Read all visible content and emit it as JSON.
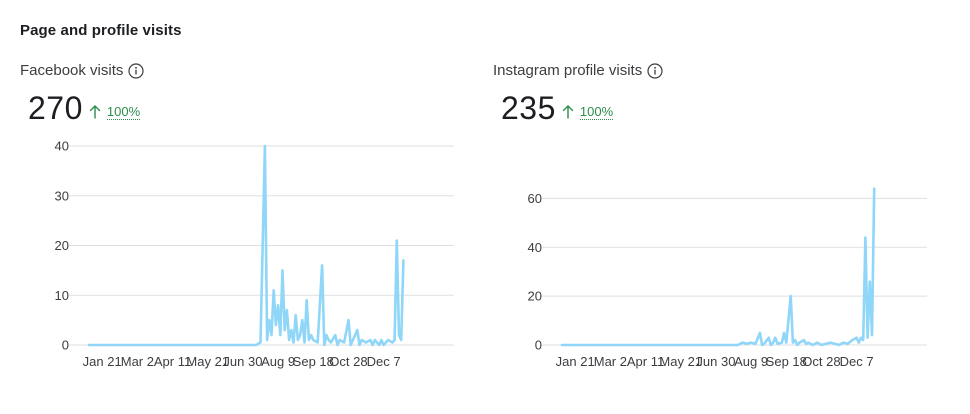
{
  "section_title": "Page and profile visits",
  "panels": [
    {
      "label": "Facebook visits",
      "value": "270",
      "change": "100%"
    },
    {
      "label": "Instagram profile visits",
      "value": "235",
      "change": "100%"
    }
  ],
  "icons": {
    "info": "info-icon",
    "trend": "arrow-up-icon"
  },
  "colors": {
    "series": "#8fd6f8",
    "increase": "#2c8c4a",
    "grid": "#dddfe2"
  },
  "chart_data": [
    {
      "type": "area",
      "ylim": [
        0,
        40
      ],
      "yticks": [
        0,
        10,
        20,
        30,
        40
      ],
      "xlim": [
        0,
        83
      ],
      "xticks": [
        {
          "x": 3,
          "label": "Jan 21"
        },
        {
          "x": 11,
          "label": "Mar 2"
        },
        {
          "x": 19,
          "label": "Apr 11"
        },
        {
          "x": 27,
          "label": "May 21"
        },
        {
          "x": 35,
          "label": "Jun 30"
        },
        {
          "x": 43,
          "label": "Aug 9"
        },
        {
          "x": 51,
          "label": "Sep 18"
        },
        {
          "x": 59,
          "label": "Oct 28"
        },
        {
          "x": 67,
          "label": "Dec 7"
        }
      ],
      "grid": true,
      "series": [
        {
          "points": [
            [
              0,
              0
            ],
            [
              38,
              0
            ],
            [
              39,
              0.5
            ],
            [
              40,
              40
            ],
            [
              40.5,
              1
            ],
            [
              41,
              5
            ],
            [
              41.5,
              2
            ],
            [
              42,
              11
            ],
            [
              42.5,
              4
            ],
            [
              43,
              8
            ],
            [
              43.5,
              2
            ],
            [
              44,
              15
            ],
            [
              44.5,
              3
            ],
            [
              45,
              7
            ],
            [
              45.5,
              1
            ],
            [
              46,
              3
            ],
            [
              46.5,
              0.5
            ],
            [
              47,
              6
            ],
            [
              47.5,
              1
            ],
            [
              48,
              2
            ],
            [
              48.5,
              5
            ],
            [
              49,
              0.5
            ],
            [
              49.5,
              9
            ],
            [
              50,
              1
            ],
            [
              50.5,
              2
            ],
            [
              51,
              1
            ],
            [
              52,
              0.5
            ],
            [
              53,
              16
            ],
            [
              53.5,
              0
            ],
            [
              54,
              2
            ],
            [
              54.5,
              1
            ],
            [
              55,
              0.5
            ],
            [
              56,
              2
            ],
            [
              56.5,
              0
            ],
            [
              57,
              1
            ],
            [
              58,
              0.5
            ],
            [
              59,
              5
            ],
            [
              59.5,
              0
            ],
            [
              60,
              1
            ],
            [
              61,
              3
            ],
            [
              61.5,
              0
            ],
            [
              62,
              1
            ],
            [
              63,
              0.5
            ],
            [
              64,
              1
            ],
            [
              64.5,
              0
            ],
            [
              65,
              1
            ],
            [
              66,
              0
            ],
            [
              66.5,
              1
            ],
            [
              67,
              0
            ],
            [
              68,
              1
            ],
            [
              69,
              0.5
            ],
            [
              69.5,
              1
            ],
            [
              70,
              21
            ],
            [
              70.5,
              2
            ],
            [
              71,
              1
            ],
            [
              71.5,
              17
            ]
          ]
        }
      ]
    },
    {
      "type": "area",
      "ylim": [
        0,
        70
      ],
      "yticks": [
        0,
        20,
        40,
        60
      ],
      "xlim": [
        0,
        83
      ],
      "xticks": [
        {
          "x": 3,
          "label": "Jan 21"
        },
        {
          "x": 11,
          "label": "Mar 2"
        },
        {
          "x": 19,
          "label": "Apr 11"
        },
        {
          "x": 27,
          "label": "May 21"
        },
        {
          "x": 35,
          "label": "Jun 30"
        },
        {
          "x": 43,
          "label": "Aug 9"
        },
        {
          "x": 51,
          "label": "Sep 18"
        },
        {
          "x": 59,
          "label": "Oct 28"
        },
        {
          "x": 67,
          "label": "Dec 7"
        }
      ],
      "grid": true,
      "series": [
        {
          "points": [
            [
              0,
              0
            ],
            [
              40,
              0
            ],
            [
              41,
              1
            ],
            [
              42,
              0.5
            ],
            [
              43,
              1
            ],
            [
              44,
              0.5
            ],
            [
              45,
              5
            ],
            [
              45.5,
              0
            ],
            [
              46,
              0.5
            ],
            [
              47,
              3
            ],
            [
              47.5,
              0
            ],
            [
              48,
              1
            ],
            [
              48.5,
              3
            ],
            [
              49,
              0.5
            ],
            [
              50,
              1
            ],
            [
              50.5,
              5
            ],
            [
              51,
              1
            ],
            [
              52,
              20
            ],
            [
              52.5,
              1
            ],
            [
              53,
              2
            ],
            [
              53.5,
              0
            ],
            [
              54,
              1
            ],
            [
              55,
              2
            ],
            [
              55.5,
              0.5
            ],
            [
              56,
              1
            ],
            [
              57,
              0
            ],
            [
              58,
              1
            ],
            [
              59,
              0
            ],
            [
              60,
              0.5
            ],
            [
              61,
              1
            ],
            [
              62,
              0.5
            ],
            [
              63,
              0
            ],
            [
              64,
              1
            ],
            [
              65,
              0.5
            ],
            [
              66,
              2
            ],
            [
              67,
              3
            ],
            [
              67.5,
              1
            ],
            [
              68,
              3
            ],
            [
              68.5,
              2
            ],
            [
              69,
              44
            ],
            [
              69.5,
              3
            ],
            [
              70,
              26
            ],
            [
              70.5,
              4
            ],
            [
              71,
              64
            ]
          ]
        }
      ]
    }
  ]
}
